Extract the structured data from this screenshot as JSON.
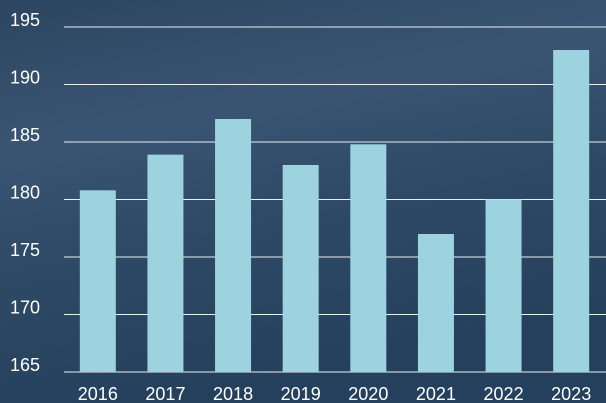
{
  "chart_data": {
    "type": "bar",
    "categories": [
      "2016",
      "2017",
      "2018",
      "2019",
      "2020",
      "2021",
      "2022",
      "2023"
    ],
    "values": [
      180.8,
      183.9,
      187,
      183,
      184.8,
      177,
      180,
      193
    ],
    "color": "#9dd3de",
    "ylim": [
      165,
      195
    ],
    "yticks": [
      165,
      170,
      175,
      180,
      185,
      190,
      195
    ],
    "grid": true
  }
}
